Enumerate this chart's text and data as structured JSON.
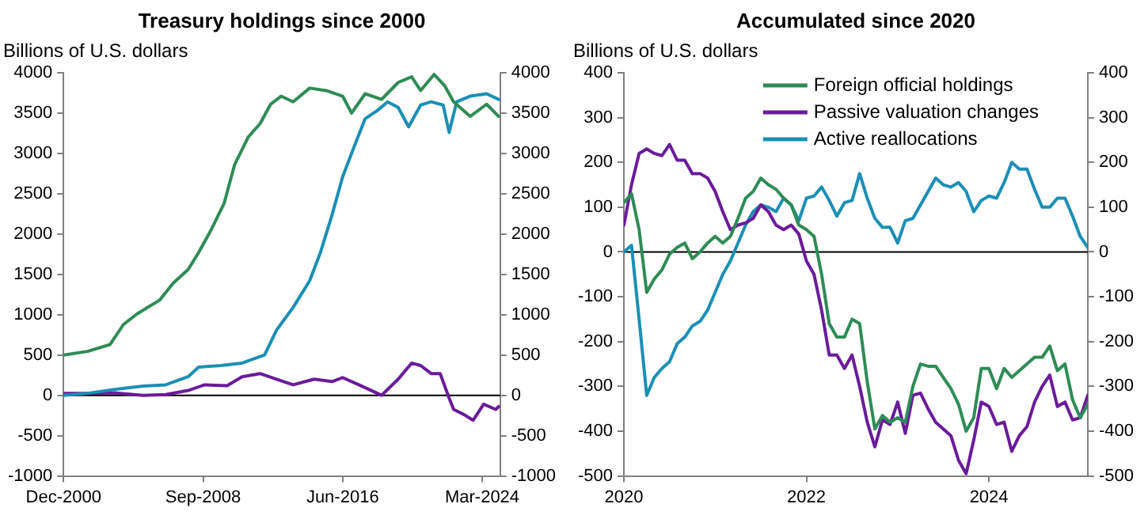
{
  "chart_data": [
    {
      "type": "line",
      "title": "Treasury holdings since 2000",
      "ylabel": "Billions of U.S. dollars",
      "xlim": [
        "2000-12",
        "2025-03"
      ],
      "xticks": [
        {
          "value": "2000-12",
          "label": "Dec-2000"
        },
        {
          "value": "2008-09",
          "label": "Sep-2008"
        },
        {
          "value": "2016-06",
          "label": "Jun-2016"
        },
        {
          "value": "2024-03",
          "label": "Mar-2024"
        }
      ],
      "ylim": [
        -1000,
        4000
      ],
      "yticks": [
        -1000,
        -500,
        0,
        500,
        1000,
        1500,
        2000,
        2500,
        3000,
        3500,
        4000
      ],
      "y2lim": [
        -1000,
        4000
      ],
      "y2ticks": [
        -1000,
        -500,
        0,
        500,
        1000,
        1500,
        2000,
        2500,
        3000,
        3500,
        4000
      ],
      "grid": false,
      "legend": false,
      "marker": "none",
      "line_style": "solid",
      "ref_lines": [
        {
          "axis": "y",
          "value": 0,
          "color": "#000000"
        }
      ],
      "series": [
        {
          "color": "#2e8b57",
          "x": [
            "2000-12",
            "2002-04",
            "2003-07",
            "2004-04",
            "2005-01",
            "2006-04",
            "2007-01",
            "2007-11",
            "2008-06",
            "2009-02",
            "2009-11",
            "2010-06",
            "2011-03",
            "2011-11",
            "2012-06",
            "2013-01",
            "2013-09",
            "2014-08",
            "2015-07",
            "2016-06",
            "2016-12",
            "2017-09",
            "2018-08",
            "2019-07",
            "2020-04",
            "2020-10",
            "2021-07",
            "2022-02",
            "2022-08",
            "2023-07",
            "2024-06",
            "2025-02"
          ],
          "values": [
            500,
            545,
            630,
            880,
            1010,
            1180,
            1390,
            1560,
            1770,
            2040,
            2380,
            2860,
            3200,
            3370,
            3610,
            3710,
            3640,
            3810,
            3780,
            3710,
            3500,
            3740,
            3670,
            3880,
            3950,
            3780,
            3980,
            3840,
            3640,
            3460,
            3610,
            3460
          ]
        },
        {
          "color": "#1b8fb5",
          "x": [
            "2000-12",
            "2002-04",
            "2003-11",
            "2005-05",
            "2006-08",
            "2007-11",
            "2008-06",
            "2009-09",
            "2010-11",
            "2012-02",
            "2012-10",
            "2013-09",
            "2014-08",
            "2015-03",
            "2015-11",
            "2016-06",
            "2017-01",
            "2017-09",
            "2018-05",
            "2018-12",
            "2019-07",
            "2020-02",
            "2020-10",
            "2021-05",
            "2022-01",
            "2022-05",
            "2022-10",
            "2023-07",
            "2024-06",
            "2025-02"
          ],
          "values": [
            0,
            25,
            75,
            115,
            130,
            230,
            350,
            370,
            400,
            500,
            810,
            1090,
            1420,
            1760,
            2240,
            2710,
            3050,
            3430,
            3530,
            3640,
            3570,
            3330,
            3600,
            3640,
            3600,
            3260,
            3640,
            3710,
            3740,
            3670
          ]
        },
        {
          "color": "#6a1b9a",
          "x": [
            "2000-12",
            "2002-04",
            "2003-11",
            "2005-05",
            "2006-08",
            "2007-11",
            "2008-10",
            "2010-01",
            "2010-11",
            "2011-11",
            "2012-10",
            "2013-09",
            "2014-11",
            "2015-11",
            "2016-06",
            "2017-06",
            "2018-08",
            "2019-07",
            "2020-04",
            "2020-10",
            "2021-05",
            "2021-11",
            "2022-05",
            "2022-08",
            "2023-03",
            "2023-09",
            "2024-04",
            "2024-12",
            "2025-02"
          ],
          "values": [
            25,
            25,
            30,
            0,
            10,
            60,
            130,
            120,
            230,
            270,
            200,
            130,
            200,
            170,
            220,
            120,
            0,
            200,
            400,
            370,
            270,
            270,
            -35,
            -175,
            -240,
            -310,
            -110,
            -175,
            -140
          ]
        }
      ]
    },
    {
      "type": "line",
      "title": "Accumulated since 2020",
      "ylabel": "Billions of U.S. dollars",
      "xlim": [
        "2020-01",
        "2025-02"
      ],
      "xticks": [
        "2020",
        "2022",
        "2024"
      ],
      "ylim": [
        -500,
        400
      ],
      "yticks": [
        -500,
        -400,
        -300,
        -200,
        -100,
        0,
        100,
        200,
        300,
        400
      ],
      "y2lim": [
        -500,
        400
      ],
      "y2ticks": [
        -500,
        -400,
        -300,
        -200,
        -100,
        0,
        100,
        200,
        300,
        400
      ],
      "grid": false,
      "legend": "top",
      "marker": "none",
      "line_style": "solid",
      "ref_lines": [
        {
          "axis": "y",
          "value": 0,
          "color": "#000000"
        }
      ],
      "x": [
        "2020-01",
        "2020-02",
        "2020-03",
        "2020-04",
        "2020-05",
        "2020-06",
        "2020-07",
        "2020-08",
        "2020-09",
        "2020-10",
        "2020-11",
        "2020-12",
        "2021-01",
        "2021-02",
        "2021-03",
        "2021-04",
        "2021-05",
        "2021-06",
        "2021-07",
        "2021-08",
        "2021-09",
        "2021-10",
        "2021-11",
        "2021-12",
        "2022-01",
        "2022-02",
        "2022-03",
        "2022-04",
        "2022-05",
        "2022-06",
        "2022-07",
        "2022-08",
        "2022-09",
        "2022-10",
        "2022-11",
        "2022-12",
        "2023-01",
        "2023-02",
        "2023-03",
        "2023-04",
        "2023-05",
        "2023-06",
        "2023-07",
        "2023-08",
        "2023-09",
        "2023-10",
        "2023-11",
        "2023-12",
        "2024-01",
        "2024-02",
        "2024-03",
        "2024-04",
        "2024-05",
        "2024-06",
        "2024-07",
        "2024-08",
        "2024-09",
        "2024-10",
        "2024-11",
        "2024-12",
        "2025-01",
        "2025-02"
      ],
      "series": [
        {
          "name": "Foreign official holdings",
          "color": "#2e8b57",
          "values": [
            110,
            130,
            50,
            -90,
            -60,
            -40,
            -5,
            10,
            20,
            -15,
            0,
            20,
            35,
            20,
            35,
            75,
            120,
            135,
            165,
            150,
            140,
            120,
            105,
            60,
            50,
            35,
            -50,
            -160,
            -190,
            -190,
            -150,
            -160,
            -290,
            -395,
            -365,
            -380,
            -370,
            -380,
            -300,
            -250,
            -255,
            -255,
            -280,
            -305,
            -340,
            -400,
            -370,
            -260,
            -260,
            -305,
            -260,
            -280,
            -265,
            -250,
            -235,
            -235,
            -210,
            -265,
            -250,
            -330,
            -370,
            -340
          ]
        },
        {
          "name": "Passive valuation changes",
          "color": "#6a1b9a",
          "values": [
            60,
            150,
            220,
            230,
            220,
            215,
            240,
            205,
            205,
            175,
            175,
            165,
            135,
            90,
            50,
            60,
            65,
            75,
            105,
            90,
            60,
            50,
            60,
            40,
            -20,
            -50,
            -130,
            -230,
            -230,
            -260,
            -230,
            -300,
            -380,
            -435,
            -375,
            -385,
            -335,
            -405,
            -320,
            -315,
            -350,
            -380,
            -395,
            -410,
            -465,
            -495,
            -420,
            -335,
            -345,
            -385,
            -380,
            -445,
            -410,
            -390,
            -335,
            -300,
            -275,
            -345,
            -335,
            -375,
            -370,
            -320
          ]
        },
        {
          "name": "Active reallocations",
          "color": "#1b8fb5",
          "values": [
            0,
            15,
            -150,
            -320,
            -280,
            -260,
            -245,
            -205,
            -190,
            -165,
            -155,
            -130,
            -90,
            -50,
            -20,
            20,
            60,
            90,
            105,
            100,
            90,
            120,
            105,
            70,
            120,
            125,
            145,
            115,
            80,
            110,
            115,
            175,
            120,
            75,
            55,
            55,
            20,
            70,
            75,
            105,
            135,
            165,
            150,
            145,
            155,
            135,
            90,
            115,
            125,
            120,
            155,
            200,
            185,
            185,
            140,
            100,
            100,
            120,
            120,
            80,
            35,
            10
          ]
        }
      ]
    }
  ]
}
